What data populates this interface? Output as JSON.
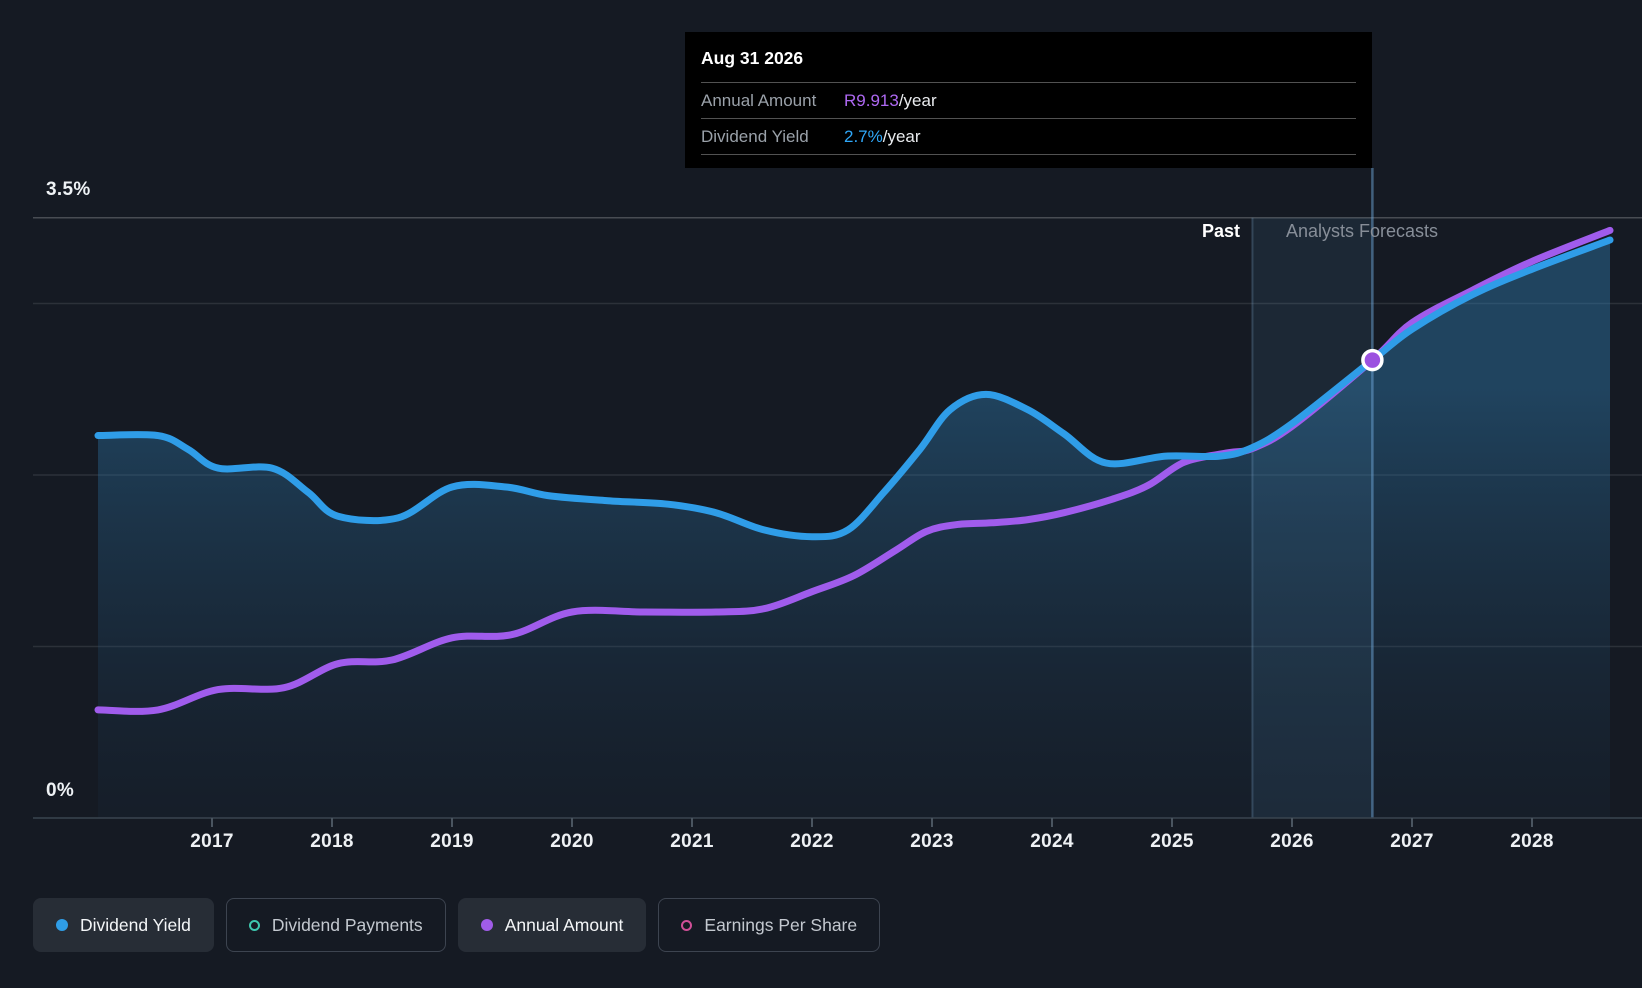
{
  "tooltip": {
    "date": "Aug 31 2026",
    "rows": [
      {
        "label": "Annual Amount",
        "value": "R9.913",
        "suffix": "/year",
        "color": "#ae68f2"
      },
      {
        "label": "Dividend Yield",
        "value": "2.7%",
        "suffix": "/year",
        "color": "#2fa7f8"
      }
    ]
  },
  "zones": {
    "past_label": "Past",
    "forecast_label": "Analysts Forecasts"
  },
  "axis": {
    "y_max_label": "3.5%",
    "y_min_label": "0%",
    "years": [
      "2017",
      "2018",
      "2019",
      "2020",
      "2021",
      "2022",
      "2023",
      "2024",
      "2025",
      "2026",
      "2027",
      "2028"
    ]
  },
  "legend": [
    {
      "label": "Dividend Yield",
      "swatch": "filled",
      "color": "#2f9de6",
      "active": true
    },
    {
      "label": "Dividend Payments",
      "swatch": "ring",
      "color": "#3ec6ae",
      "active": false
    },
    {
      "label": "Annual Amount",
      "swatch": "filled",
      "color": "#a05ce8",
      "active": true
    },
    {
      "label": "Earnings Per Share",
      "swatch": "ring",
      "color": "#d04f97",
      "active": false
    }
  ],
  "chart_data": {
    "type": "area",
    "x_unit": "year",
    "x_range": [
      2016.05,
      2028.65
    ],
    "ylim_pct": [
      0,
      3.5
    ],
    "gridlines_pct": [
      3.5,
      3.0,
      2.0,
      1.0,
      0
    ],
    "grid": true,
    "divider_x": 2025.67,
    "divider_note": "Past | Analysts Forecasts boundary (Aug 31 2025)",
    "hover_x": 2026.67,
    "hover_date": "Aug 31 2026",
    "amount_yield_anchor": {
      "amount": 9.913,
      "yield_pct": 2.67
    },
    "marker": {
      "x": 2026.67,
      "series": "Annual Amount",
      "fill": "#9b51e0"
    },
    "series": [
      {
        "name": "Dividend Yield",
        "unit": "%",
        "color": "#2f9de8",
        "x": [
          2016.05,
          2016.55,
          2016.8,
          2017.05,
          2017.5,
          2017.8,
          2018.05,
          2018.55,
          2019.0,
          2019.45,
          2019.8,
          2020.3,
          2020.8,
          2021.2,
          2021.6,
          2022.0,
          2022.3,
          2022.6,
          2022.9,
          2023.15,
          2023.45,
          2023.8,
          2024.1,
          2024.45,
          2024.95,
          2025.4,
          2025.67,
          2026.0,
          2026.67,
          2027.0,
          2027.5,
          2028.0,
          2028.65
        ],
        "values": [
          2.23,
          2.23,
          2.15,
          2.04,
          2.04,
          1.9,
          1.76,
          1.75,
          1.93,
          1.93,
          1.88,
          1.85,
          1.83,
          1.78,
          1.68,
          1.64,
          1.68,
          1.9,
          2.15,
          2.38,
          2.47,
          2.38,
          2.24,
          2.07,
          2.11,
          2.11,
          2.16,
          2.3,
          2.67,
          2.85,
          3.05,
          3.2,
          3.37
        ]
      },
      {
        "name": "Annual Amount",
        "unit": "R/year",
        "color": "#a05cec",
        "x": [
          2016.05,
          2016.55,
          2017.05,
          2017.6,
          2018.05,
          2018.5,
          2019.0,
          2019.5,
          2020.0,
          2020.6,
          2021.2,
          2021.6,
          2022.0,
          2022.35,
          2022.7,
          2022.95,
          2023.2,
          2023.5,
          2023.8,
          2024.1,
          2024.5,
          2024.8,
          2025.1,
          2025.45,
          2025.67,
          2026.0,
          2026.67,
          2027.0,
          2027.5,
          2028.0,
          2028.65
        ],
        "values": [
          2.34,
          2.34,
          2.78,
          2.82,
          3.34,
          3.42,
          3.9,
          3.97,
          4.46,
          4.46,
          4.46,
          4.53,
          4.9,
          5.25,
          5.8,
          6.2,
          6.35,
          6.39,
          6.46,
          6.61,
          6.9,
          7.2,
          7.7,
          7.9,
          8.0,
          8.48,
          9.913,
          10.72,
          11.42,
          12.05,
          12.72
        ]
      }
    ]
  }
}
